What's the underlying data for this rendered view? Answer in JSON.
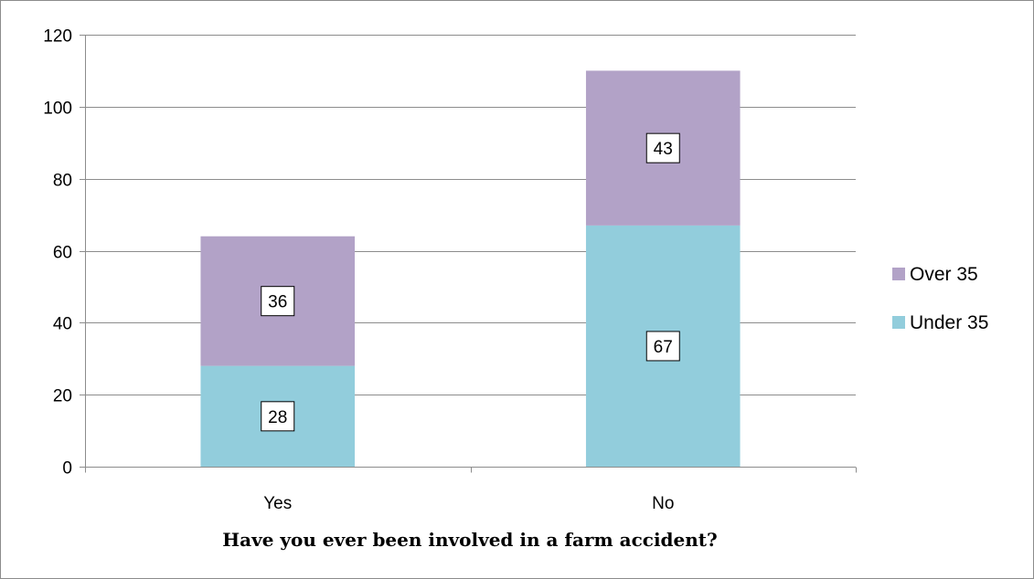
{
  "chart_data": {
    "type": "bar",
    "stacked": true,
    "categories": [
      "Yes",
      "No"
    ],
    "series": [
      {
        "name": "Under 35",
        "values": [
          28,
          67
        ],
        "color": "#92cddc"
      },
      {
        "name": "Over 35",
        "values": [
          36,
          43
        ],
        "color": "#b2a2c7"
      }
    ],
    "title": "",
    "xlabel": "Have you ever been involved in a farm accident?",
    "ylabel": "",
    "ylim": [
      0,
      120
    ],
    "yticks": [
      0,
      20,
      40,
      60,
      80,
      100,
      120
    ],
    "grid": true,
    "legend_position": "right",
    "legend_order": [
      "Over 35",
      "Under 35"
    ],
    "data_labels": true
  }
}
